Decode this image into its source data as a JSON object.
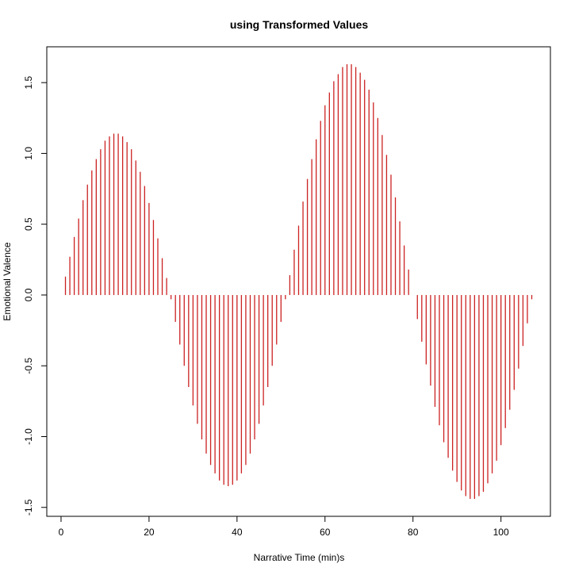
{
  "chart_data": {
    "type": "spike",
    "title": "using Transformed Values",
    "x_label": "Narrative Time (min)s",
    "y_label": "Emotional Valence",
    "color": "#cc2222",
    "x": [
      1,
      2,
      3,
      4,
      5,
      6,
      7,
      8,
      9,
      10,
      11,
      12,
      13,
      14,
      15,
      16,
      17,
      18,
      19,
      20,
      21,
      22,
      23,
      24,
      25,
      26,
      27,
      28,
      29,
      30,
      31,
      32,
      33,
      34,
      35,
      36,
      37,
      38,
      39,
      40,
      41,
      42,
      43,
      44,
      45,
      46,
      47,
      48,
      49,
      50,
      51,
      52,
      53,
      54,
      55,
      56,
      57,
      58,
      59,
      60,
      61,
      62,
      63,
      64,
      65,
      66,
      67,
      68,
      69,
      70,
      71,
      72,
      73,
      74,
      75,
      76,
      77,
      78,
      79,
      80,
      81,
      82,
      83,
      84,
      85,
      86,
      87,
      88,
      89,
      90,
      91,
      92,
      93,
      94,
      95,
      96,
      97,
      98,
      99,
      100,
      101,
      102,
      103,
      104,
      105,
      106,
      107
    ],
    "values": [
      0.13,
      0.27,
      0.41,
      0.54,
      0.67,
      0.78,
      0.88,
      0.96,
      1.03,
      1.09,
      1.12,
      1.14,
      1.14,
      1.12,
      1.08,
      1.03,
      0.95,
      0.87,
      0.77,
      0.65,
      0.53,
      0.4,
      0.26,
      0.12,
      -0.03,
      -0.19,
      -0.35,
      -0.5,
      -0.65,
      -0.78,
      -0.91,
      -1.02,
      -1.12,
      -1.2,
      -1.26,
      -1.31,
      -1.34,
      -1.35,
      -1.34,
      -1.31,
      -1.26,
      -1.2,
      -1.12,
      -1.02,
      -0.91,
      -0.78,
      -0.65,
      -0.5,
      -0.35,
      -0.19,
      -0.03,
      0.14,
      0.32,
      0.49,
      0.66,
      0.82,
      0.96,
      1.1,
      1.23,
      1.34,
      1.43,
      1.51,
      1.56,
      1.61,
      1.63,
      1.63,
      1.61,
      1.57,
      1.52,
      1.45,
      1.36,
      1.25,
      1.13,
      0.99,
      0.85,
      0.69,
      0.52,
      0.35,
      0.18,
      0,
      -0.17,
      -0.33,
      -0.49,
      -0.64,
      -0.79,
      -0.92,
      -1.04,
      -1.15,
      -1.24,
      -1.32,
      -1.38,
      -1.42,
      -1.44,
      -1.44,
      -1.42,
      -1.39,
      -1.33,
      -1.26,
      -1.17,
      -1.06,
      -0.94,
      -0.81,
      -0.67,
      -0.52,
      -0.36,
      -0.2,
      -0.03
    ],
    "xlim": [
      -3.24,
      111.24
    ],
    "ylim": [
      -1.563,
      1.753
    ],
    "xticks": [
      0,
      20,
      40,
      60,
      80,
      100
    ],
    "yticks": [
      -1.5,
      {
        "value": -1,
        "label": "-1.0"
      },
      -0.5,
      {
        "value": 0,
        "label": "0.0"
      },
      0.5,
      {
        "value": 1,
        "label": "1.0"
      },
      1.5
    ]
  }
}
